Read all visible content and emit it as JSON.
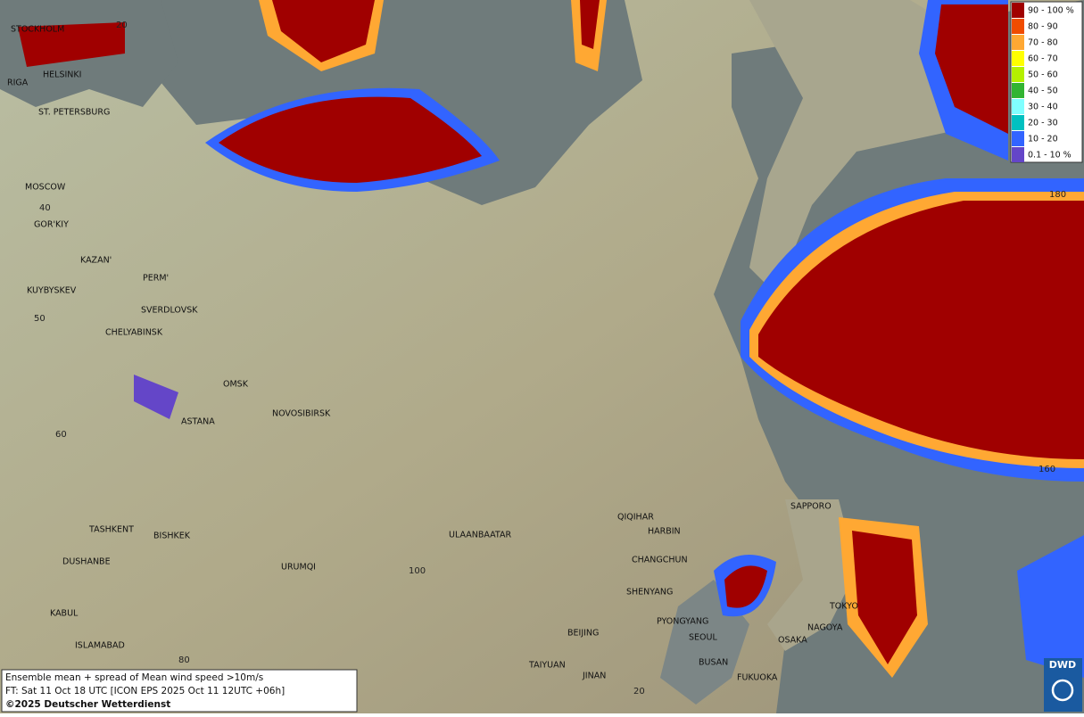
{
  "legend": [
    {
      "label": "90 - 100 %",
      "color": "#a00000"
    },
    {
      "label": "80 - 90",
      "color": "#f04c00"
    },
    {
      "label": "70 - 80",
      "color": "#ffa833"
    },
    {
      "label": "60 - 70",
      "color": "#ffff00"
    },
    {
      "label": "50 - 60",
      "color": "#b4f000"
    },
    {
      "label": "40 - 50",
      "color": "#32b432"
    },
    {
      "label": "30 - 40",
      "color": "#80ffff"
    },
    {
      "label": "20 - 30",
      "color": "#00c0c0"
    },
    {
      "label": "10 - 20",
      "color": "#3264ff"
    },
    {
      "label": "0.1 - 10 %",
      "color": "#6446c8"
    }
  ],
  "cities": [
    "STOCKHOLM",
    "HELSINKI",
    "RIGA",
    "ST. PETERSBURG",
    "MOSCOW",
    "GOR'KIY",
    "KAZAN'",
    "PERM'",
    "KUYBYSKEV",
    "SVERDLOVSK",
    "CHELYABINSK",
    "OMSK",
    "NOVOSIBIRSK",
    "ASTANA",
    "TASHKENT",
    "BISHKEK",
    "DUSHANBE",
    "URUMQI",
    "KABUL",
    "ISLAMABAD",
    "ULAANBAATAR",
    "QIQIHAR",
    "HARBIN",
    "CHANGCHUN",
    "SHENYANG",
    "BEIJING",
    "PYONGYANG",
    "SEOUL",
    "BUSAN",
    "TAIYUAN",
    "JINAN",
    "FUKUOKA",
    "SAPPORO",
    "TOKYO",
    "NAGOYA",
    "OSAKA"
  ],
  "graticule_labels": [
    "20",
    "40",
    "50",
    "60",
    "80",
    "100",
    "180",
    "160",
    "20"
  ],
  "caption": [
    "Ensemble mean + spread of Mean wind speed >10m/s",
    "FT: Sat 11 Oct 18 UTC [ICON EPS 2025 Oct 11 12UTC +06h]",
    "©2025 Deutscher Wetterdienst"
  ],
  "logo": "DWD"
}
